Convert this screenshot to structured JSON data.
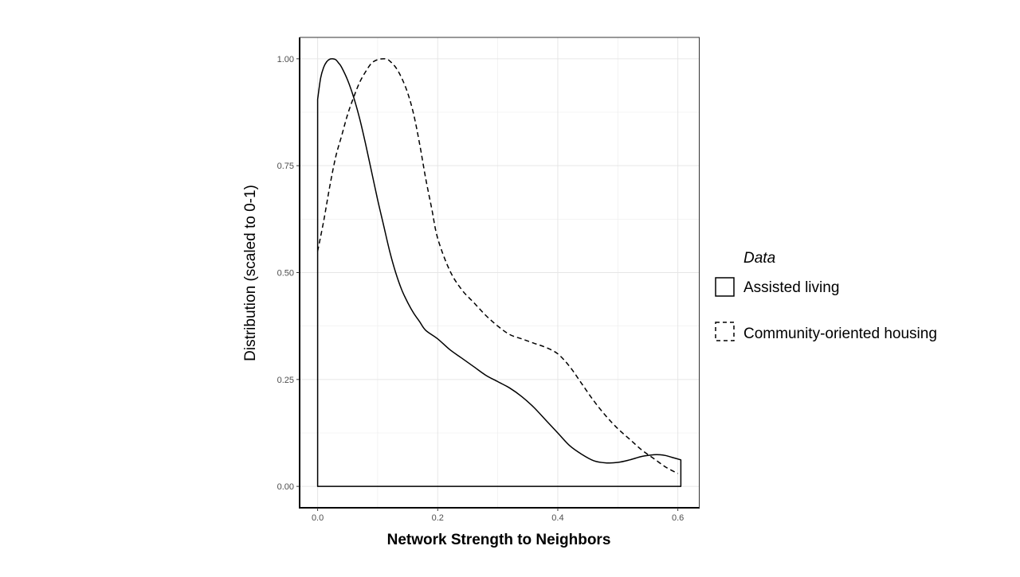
{
  "chart_data": {
    "type": "area",
    "xlabel": "Network Strength to Neighbors",
    "ylabel": "Distribution (scaled to 0-1)",
    "xlim": [
      -0.03,
      0.635
    ],
    "ylim": [
      -0.05,
      1.05
    ],
    "x_ticks": [
      0.0,
      0.2,
      0.4,
      0.6
    ],
    "x_tick_labels": [
      "0.0",
      "0.2",
      "0.4",
      "0.6"
    ],
    "y_ticks": [
      0.0,
      0.25,
      0.5,
      0.75,
      1.0
    ],
    "y_tick_labels": [
      "0.00",
      "0.25",
      "0.50",
      "0.75",
      "1.00"
    ],
    "grid": true,
    "legend": {
      "title": "Data",
      "position": "right"
    },
    "series": [
      {
        "name": "Assisted living",
        "line_style": "solid",
        "filled_outline": true,
        "x": [
          0.0,
          0.005,
          0.01,
          0.015,
          0.02,
          0.025,
          0.03,
          0.035,
          0.04,
          0.05,
          0.06,
          0.07,
          0.08,
          0.09,
          0.1,
          0.11,
          0.12,
          0.13,
          0.14,
          0.15,
          0.16,
          0.17,
          0.18,
          0.2,
          0.22,
          0.24,
          0.26,
          0.28,
          0.3,
          0.32,
          0.34,
          0.36,
          0.38,
          0.4,
          0.42,
          0.44,
          0.46,
          0.48,
          0.5,
          0.52,
          0.54,
          0.56,
          0.57,
          0.58,
          0.59,
          0.605
        ],
        "y": [
          0.905,
          0.955,
          0.98,
          0.993,
          0.999,
          1.0,
          0.998,
          0.99,
          0.98,
          0.95,
          0.91,
          0.86,
          0.8,
          0.735,
          0.67,
          0.61,
          0.55,
          0.5,
          0.46,
          0.43,
          0.405,
          0.385,
          0.365,
          0.345,
          0.32,
          0.3,
          0.28,
          0.26,
          0.245,
          0.23,
          0.21,
          0.185,
          0.155,
          0.125,
          0.095,
          0.075,
          0.06,
          0.055,
          0.056,
          0.062,
          0.07,
          0.074,
          0.074,
          0.072,
          0.068,
          0.062
        ]
      },
      {
        "name": "Community-oriented housing",
        "line_style": "dashed",
        "filled_outline": false,
        "x": [
          0.0,
          0.01,
          0.02,
          0.03,
          0.04,
          0.05,
          0.06,
          0.07,
          0.08,
          0.09,
          0.1,
          0.11,
          0.115,
          0.12,
          0.13,
          0.14,
          0.15,
          0.16,
          0.17,
          0.18,
          0.19,
          0.2,
          0.22,
          0.24,
          0.26,
          0.28,
          0.3,
          0.32,
          0.34,
          0.36,
          0.38,
          0.4,
          0.42,
          0.44,
          0.46,
          0.48,
          0.5,
          0.52,
          0.54,
          0.56,
          0.58,
          0.6
        ],
        "y": [
          0.55,
          0.62,
          0.7,
          0.77,
          0.82,
          0.87,
          0.91,
          0.945,
          0.97,
          0.99,
          0.998,
          1.0,
          0.999,
          0.995,
          0.98,
          0.955,
          0.92,
          0.87,
          0.8,
          0.72,
          0.65,
          0.58,
          0.505,
          0.46,
          0.43,
          0.4,
          0.375,
          0.355,
          0.345,
          0.335,
          0.325,
          0.31,
          0.28,
          0.24,
          0.2,
          0.165,
          0.135,
          0.11,
          0.085,
          0.065,
          0.045,
          0.03
        ]
      }
    ]
  }
}
